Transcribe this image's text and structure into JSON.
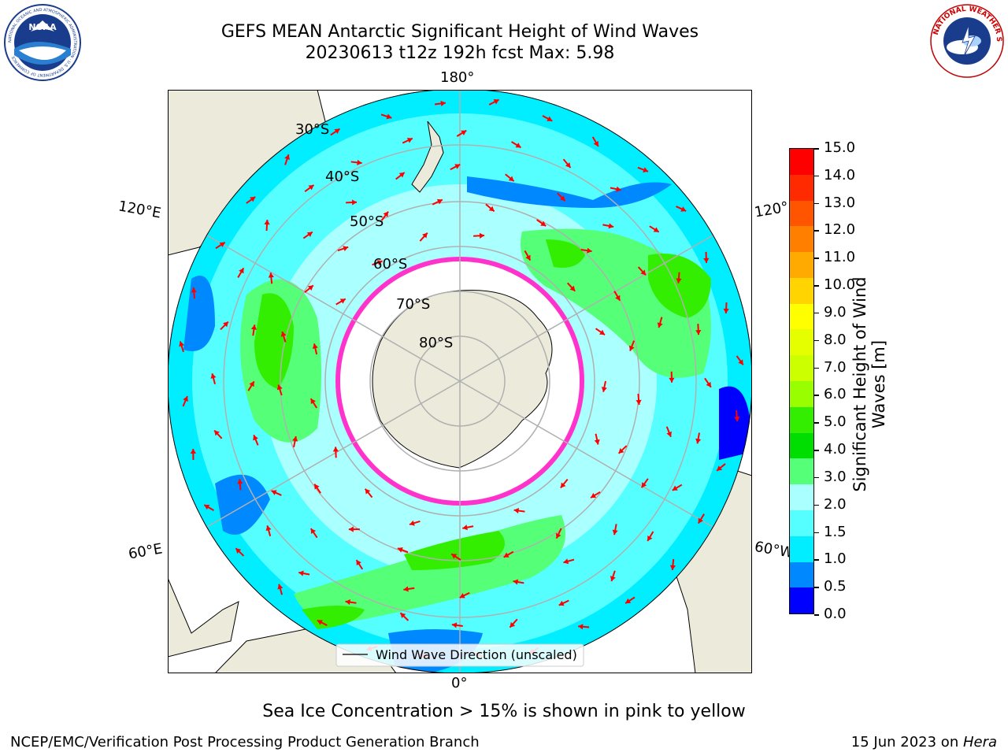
{
  "header": {
    "title_line1": "GEFS MEAN Antarctic Significant Height of Wind Waves",
    "title_line2": "20230613 t12z 192h fcst   Max: 5.98"
  },
  "logos": {
    "left": "NOAA",
    "right": "NATIONAL WEATHER SERVICE",
    "left_ring": "NATIONAL OCEANIC AND ATMOSPHERIC ADMINISTRATION · U.S. DEPARTMENT OF COMMERCE"
  },
  "map": {
    "lon_labels": {
      "top": "180°",
      "bottom": "0°",
      "upper_left": "120°E",
      "lower_left": "60°E",
      "upper_right": "120°",
      "lower_right": "60°W"
    },
    "lat_labels": [
      "30°S",
      "40°S",
      "50°S",
      "60°S",
      "70°S",
      "80°S"
    ],
    "legend": "Wind Wave Direction (unscaled)",
    "colors": {
      "land": "#ecebdb",
      "ice": "#ffffff",
      "grid": "#b0b0b0",
      "arrow": "#ff0000",
      "sea_ice_edge": "#ff33cc"
    }
  },
  "colorbar": {
    "label_line1": "Significant Height of Wind",
    "label_line2": "Waves [m]",
    "ticks": [
      "15.0",
      "14.0",
      "13.0",
      "12.0",
      "11.0",
      "10.0",
      "9.0",
      "8.0",
      "7.0",
      "6.0",
      "5.0",
      "4.0",
      "3.0",
      "2.0",
      "1.5",
      "1.0",
      "0.5",
      "0.0"
    ],
    "colors": [
      "#ff0000",
      "#ff2a00",
      "#ff5500",
      "#ff8000",
      "#ffaa00",
      "#ffd400",
      "#ffff00",
      "#e6ff00",
      "#ccff00",
      "#99ff00",
      "#33ee00",
      "#00dd00",
      "#55ff77",
      "#aaffff",
      "#55ffff",
      "#00eeff",
      "#0088ff",
      "#0000ff"
    ]
  },
  "footer": {
    "note": "Sea Ice Concentration > 15% is shown in pink to yellow",
    "left": "NCEP/EMC/Verification Post Processing Product Generation Branch",
    "right_date": "15 Jun 2023 on ",
    "right_host": "Hera"
  }
}
